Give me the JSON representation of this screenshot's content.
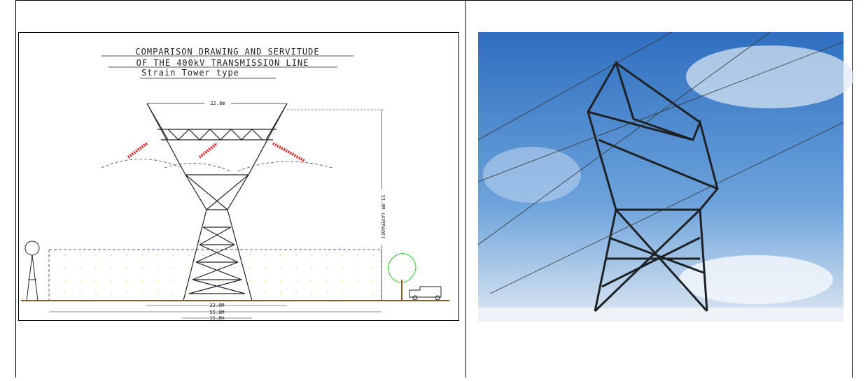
{
  "left_drawing": {
    "title_lines": [
      "COMPARISON DRAWING AND SERVITUDE",
      "OF THE 400kV TRANSMISSION LINE"
    ],
    "subtitle": "Strain Tower type",
    "dimensions": {
      "top_width": "22.8m",
      "height": "33.8M (AVERAGE)",
      "base_inner": "22.8M",
      "servitude": "55.8M",
      "base": "11.8m"
    }
  }
}
